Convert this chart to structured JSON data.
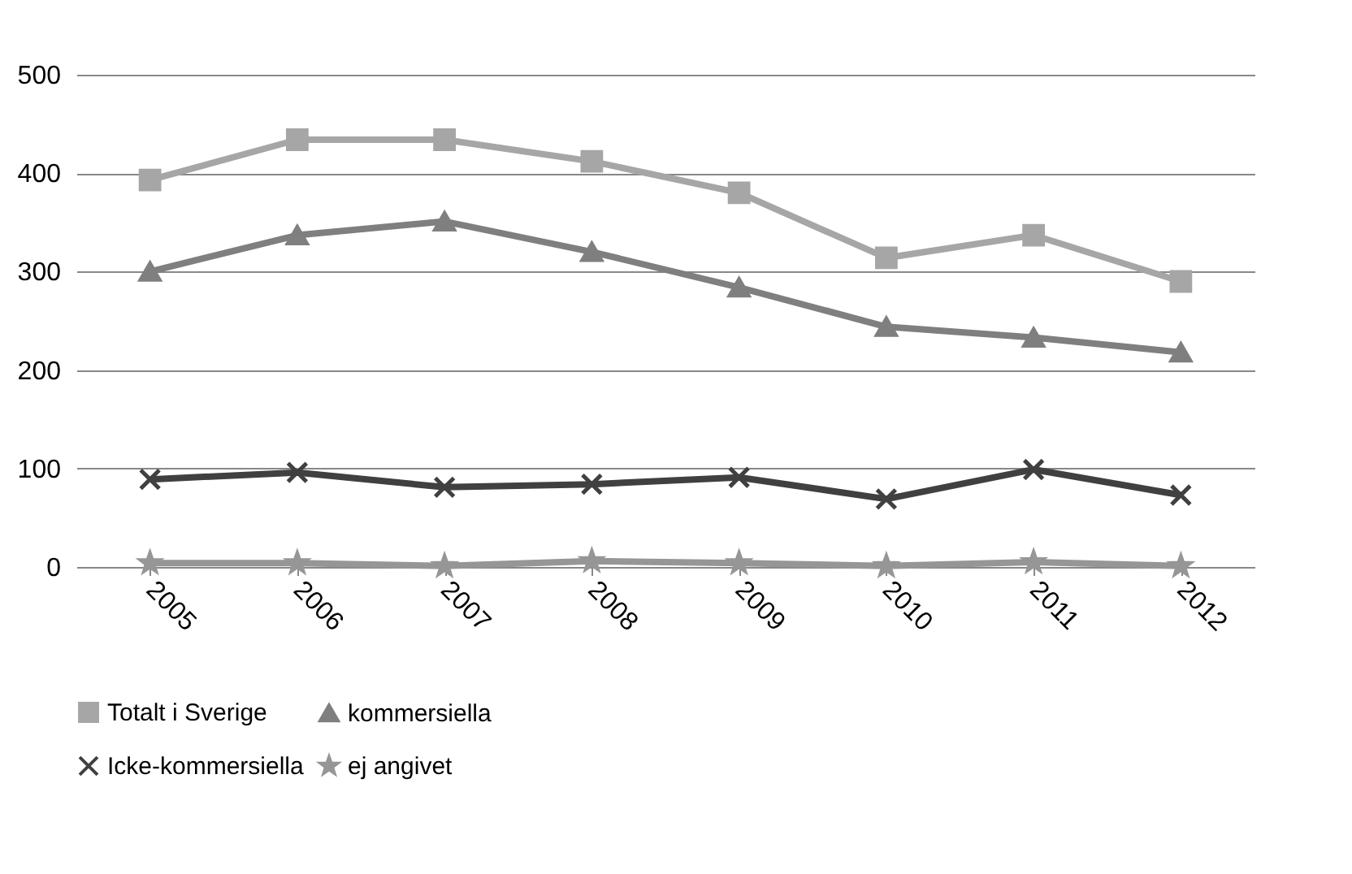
{
  "chart_data": {
    "type": "line",
    "categories": [
      "2005",
      "2006",
      "2007",
      "2008",
      "2009",
      "2010",
      "2011",
      "2012"
    ],
    "series": [
      {
        "name": "Totalt i Sverige",
        "color": "#a6a6a6",
        "marker": "square",
        "values": [
          393,
          434,
          434,
          412,
          380,
          314,
          337,
          290
        ]
      },
      {
        "name": "kommersiella",
        "color": "#7f7f7f",
        "marker": "triangle",
        "values": [
          300,
          337,
          351,
          320,
          284,
          244,
          233,
          218
        ]
      },
      {
        "name": "Icke-kommersiella",
        "color": "#404040",
        "marker": "cross",
        "values": [
          89,
          96,
          81,
          84,
          91,
          69,
          99,
          73
        ]
      },
      {
        "name": "ej angivet",
        "color": "#969696",
        "marker": "star",
        "values": [
          4,
          4,
          1,
          6,
          4,
          1,
          5,
          1
        ]
      }
    ],
    "ylim": [
      0,
      500
    ],
    "yticks": [
      0,
      100,
      200,
      300,
      400,
      500
    ],
    "grid": "y",
    "legend": "bottom"
  }
}
